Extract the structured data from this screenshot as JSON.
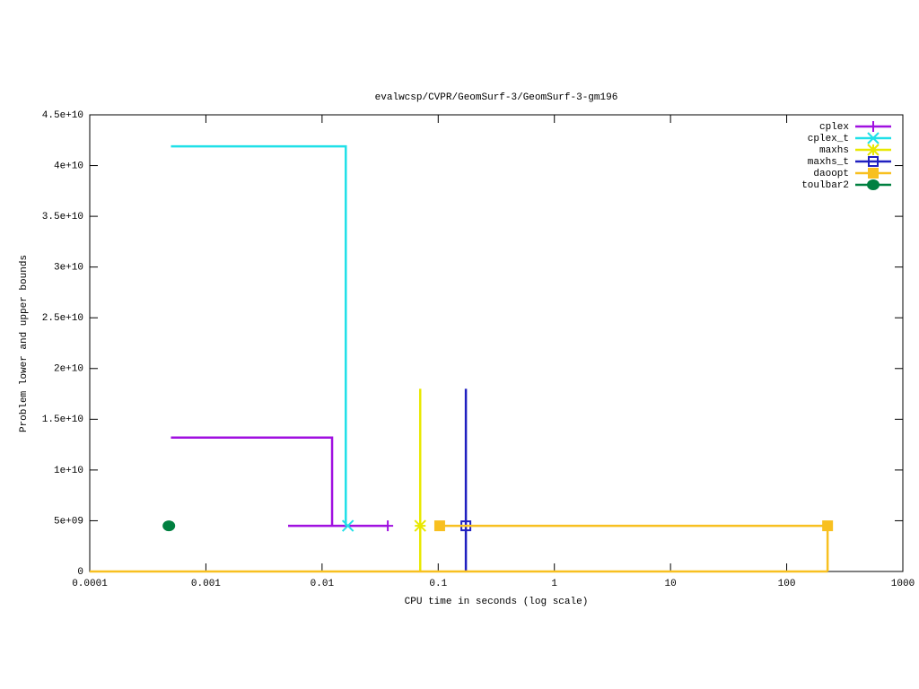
{
  "chart_data": {
    "type": "line",
    "title": "evalwcsp/CVPR/GeomSurf-3/GeomSurf-3-gm196",
    "x_label": "CPU time in seconds (log scale)",
    "y_label": "Problem lower and upper bounds",
    "log_x": true,
    "xlim": [
      0.0001,
      1000
    ],
    "xticks": [
      0.0001,
      0.001,
      0.01,
      0.1,
      1,
      10,
      100,
      1000
    ],
    "ylim": [
      0,
      45000000000
    ],
    "yticks": [
      0,
      {
        "value": 5000000000,
        "label": "5e+09"
      },
      {
        "value": 10000000000,
        "label": "1e+10"
      },
      {
        "value": 15000000000,
        "label": "1.5e+10"
      },
      {
        "value": 20000000000,
        "label": "2e+10"
      },
      {
        "value": 25000000000,
        "label": "2.5e+10"
      },
      {
        "value": 30000000000,
        "label": "3e+10"
      },
      {
        "value": 35000000000,
        "label": "3.5e+10"
      },
      {
        "value": 40000000000,
        "label": "4e+10"
      },
      {
        "value": 45000000000,
        "label": "4.5e+10"
      }
    ],
    "legend": "top-right",
    "series": [
      {
        "name": "cplex",
        "color": "#a010e0",
        "marker": "plus",
        "x": [
          0.0005,
          0.0122,
          0.0122,
          null,
          0.0051,
          0.0368
        ],
        "values": [
          13200000000,
          13200000000,
          4500000000,
          null,
          4500000000,
          4500000000
        ],
        "marker_x": [
          0.0368
        ],
        "marker_values": [
          4500000000
        ]
      },
      {
        "name": "cplex_t",
        "color": "#20e0e8",
        "marker": "cross",
        "x": [
          0.0005,
          0.016,
          0.016
        ],
        "values": [
          41900000000,
          41900000000,
          4500000000
        ],
        "marker_x": [
          0.0167
        ],
        "marker_values": [
          4500000000
        ]
      },
      {
        "name": "maxhs",
        "color": "#e8e800",
        "marker": "star",
        "x": [
          0.07,
          0.07
        ],
        "values": [
          18000000000,
          0
        ],
        "marker_x": [
          0.07
        ],
        "marker_values": [
          4500000000
        ]
      },
      {
        "name": "maxhs_t",
        "color": "#2020c0",
        "marker": "square",
        "x": [
          0.173,
          0.173
        ],
        "values": [
          18000000000,
          0
        ],
        "marker_x": [
          0.173
        ],
        "marker_values": [
          4500000000
        ]
      },
      {
        "name": "daoopt",
        "color": "#f8c020",
        "marker": "filled-square",
        "x": [
          0.103,
          225,
          225,
          null,
          0.0001,
          225
        ],
        "values": [
          4500000000,
          4500000000,
          0,
          null,
          0,
          0
        ],
        "marker_x": [
          0.103,
          225
        ],
        "marker_values": [
          4500000000,
          4500000000
        ]
      },
      {
        "name": "toulbar2",
        "color": "#008040",
        "marker": "filled-circle",
        "x": [],
        "values": [],
        "marker_x": [
          0.00048
        ],
        "marker_values": [
          4500000000
        ]
      }
    ]
  }
}
